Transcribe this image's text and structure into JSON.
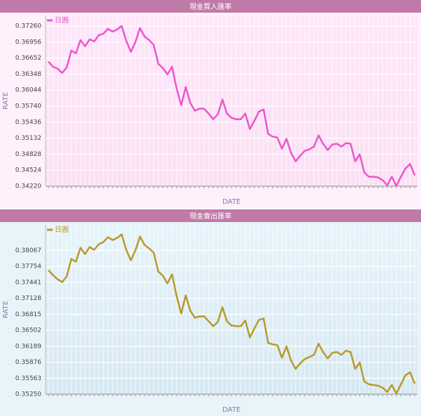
{
  "chart_data": [
    {
      "type": "line",
      "title": "現金買入匯率",
      "x_label": "DATE",
      "y_label": "RATE",
      "series": [
        {
          "name": "日圓",
          "color": "#ee55cc",
          "values": [
            0.36582,
            0.36489,
            0.36449,
            0.36369,
            0.36475,
            0.36794,
            0.36741,
            0.36994,
            0.36874,
            0.37007,
            0.36967,
            0.37087,
            0.37113,
            0.37207,
            0.37154,
            0.37193,
            0.3726,
            0.36981,
            0.36768,
            0.36954,
            0.3722,
            0.3706,
            0.36994,
            0.36901,
            0.36542,
            0.36462,
            0.36342,
            0.36489,
            0.36076,
            0.35757,
            0.36103,
            0.35797,
            0.35651,
            0.35691,
            0.35691,
            0.35598,
            0.35491,
            0.35584,
            0.35864,
            0.35598,
            0.35518,
            0.35491,
            0.35491,
            0.35598,
            0.35305,
            0.35465,
            0.35637,
            0.35677,
            0.35212,
            0.35159,
            0.35145,
            0.34932,
            0.35119,
            0.34853,
            0.34693,
            0.34799,
            0.34893,
            0.34919,
            0.34972,
            0.35185,
            0.35026,
            0.34906,
            0.35012,
            0.35026,
            0.34972,
            0.35039,
            0.35026,
            0.34693,
            0.34826,
            0.3448,
            0.344,
            0.344,
            0.34387,
            0.34334,
            0.34241,
            0.344,
            0.34228,
            0.344,
            0.3456,
            0.3464,
            0.34427
          ]
        }
      ],
      "ylim": [
        0.3422,
        0.3746
      ],
      "yticks": [
        {
          "value": 0.3422,
          "label": "0.34220"
        },
        {
          "value": 0.34524,
          "label": "0.34524"
        },
        {
          "value": 0.34828,
          "label": "0.34828"
        },
        {
          "value": 0.35132,
          "label": "0.35132"
        },
        {
          "value": 0.35436,
          "label": "0.35436"
        },
        {
          "value": 0.3574,
          "label": "0.35740"
        },
        {
          "value": 0.36044,
          "label": "0.36044"
        },
        {
          "value": 0.36348,
          "label": "0.36348"
        },
        {
          "value": 0.36652,
          "label": "0.36652"
        },
        {
          "value": 0.36956,
          "label": "0.36956"
        },
        {
          "value": 0.3726,
          "label": "0.37260"
        }
      ],
      "grid": true
    },
    {
      "type": "line",
      "title": "現金賣出匯率",
      "x_label": "DATE",
      "y_label": "RATE",
      "series": [
        {
          "name": "日圓",
          "color": "#b89a2a",
          "values": [
            0.37683,
            0.37586,
            0.37504,
            0.37449,
            0.37559,
            0.37902,
            0.37847,
            0.38122,
            0.37998,
            0.38136,
            0.38081,
            0.38191,
            0.38232,
            0.38328,
            0.38273,
            0.38314,
            0.38383,
            0.38081,
            0.37875,
            0.38067,
            0.38342,
            0.38177,
            0.38108,
            0.38026,
            0.37655,
            0.37573,
            0.37422,
            0.376,
            0.37175,
            0.36831,
            0.37188,
            0.36886,
            0.36749,
            0.36776,
            0.36776,
            0.3668,
            0.36584,
            0.36667,
            0.36955,
            0.3668,
            0.36598,
            0.36584,
            0.36584,
            0.36694,
            0.36364,
            0.36543,
            0.36708,
            0.36735,
            0.36255,
            0.36227,
            0.36213,
            0.35966,
            0.36186,
            0.35911,
            0.35747,
            0.35857,
            0.35939,
            0.3598,
            0.36021,
            0.36241,
            0.36076,
            0.35953,
            0.36062,
            0.36076,
            0.36021,
            0.36104,
            0.36076,
            0.35747,
            0.3587,
            0.35499,
            0.35445,
            0.35431,
            0.35417,
            0.35376,
            0.35294,
            0.35431,
            0.35266,
            0.35445,
            0.35623,
            0.35678,
            0.35458
          ]
        }
      ],
      "ylim": [
        0.3525,
        0.3857
      ],
      "yticks": [
        {
          "value": 0.3525,
          "label": "0.35250"
        },
        {
          "value": 0.35563,
          "label": "0.35563"
        },
        {
          "value": 0.35876,
          "label": "0.35876"
        },
        {
          "value": 0.36189,
          "label": "0.36189"
        },
        {
          "value": 0.36502,
          "label": "0.36502"
        },
        {
          "value": 0.36815,
          "label": "0.36815"
        },
        {
          "value": 0.37128,
          "label": "0.37128"
        },
        {
          "value": 0.37441,
          "label": "0.37441"
        },
        {
          "value": 0.37754,
          "label": "0.37754"
        },
        {
          "value": 0.38067,
          "label": "0.38067"
        }
      ],
      "grid": true
    }
  ]
}
